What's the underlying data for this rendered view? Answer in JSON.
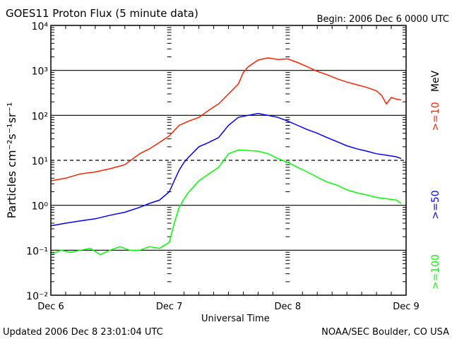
{
  "chart_data": {
    "type": "line",
    "title": "GOES11 Proton Flux (5 minute data)",
    "begin": "Begin: 2006 Dec 6 0000 UTC",
    "xlabel": "Universal Time",
    "ylabel": "Particles cm⁻²s⁻¹sr⁻¹",
    "x_ticks": [
      "Dec 6",
      "Dec 7",
      "Dec 8",
      "Dec 9"
    ],
    "x_range_hours": [
      0,
      72
    ],
    "y_scale": "log",
    "y_range": [
      0.01,
      10000
    ],
    "y_ticks": [
      "10⁻²",
      "10⁻¹",
      "10⁰",
      "10¹",
      "10²",
      "10³",
      "10⁴"
    ],
    "unit_label": "MeV",
    "series": [
      {
        "name": ">=10",
        "color": "#ff2000",
        "hours": [
          0,
          3,
          6,
          9,
          12,
          15,
          18,
          20,
          22,
          24,
          26,
          28,
          30,
          32,
          34,
          36,
          38,
          39,
          40,
          42,
          44,
          46,
          48,
          50,
          52,
          54,
          56,
          58,
          60,
          62,
          64,
          66,
          67,
          68,
          69,
          70,
          71
        ],
        "values": [
          3.5,
          4,
          5,
          5.5,
          6.5,
          8,
          14,
          18,
          25,
          35,
          60,
          75,
          90,
          130,
          180,
          300,
          500,
          900,
          1200,
          1700,
          1900,
          1750,
          1800,
          1500,
          1200,
          950,
          800,
          650,
          550,
          480,
          420,
          350,
          280,
          180,
          250,
          230,
          220
        ]
      },
      {
        "name": ">=50",
        "color": "#0000ff",
        "hours": [
          0,
          3,
          6,
          9,
          12,
          15,
          18,
          20,
          22,
          24,
          25,
          26,
          27,
          28,
          30,
          32,
          34,
          36,
          38,
          40,
          42,
          44,
          46,
          48,
          50,
          52,
          54,
          56,
          58,
          60,
          62,
          64,
          66,
          68,
          70,
          71
        ],
        "values": [
          0.35,
          0.4,
          0.45,
          0.5,
          0.6,
          0.7,
          0.9,
          1.1,
          1.3,
          2,
          3.5,
          6,
          9,
          12,
          20,
          25,
          32,
          60,
          90,
          100,
          110,
          100,
          90,
          75,
          60,
          48,
          40,
          32,
          26,
          21,
          18,
          16,
          14,
          13,
          12,
          11
        ]
      },
      {
        "name": ">=100",
        "color": "#00ff00",
        "hours": [
          0,
          2,
          4,
          6,
          8,
          10,
          12,
          14,
          16,
          18,
          20,
          22,
          24,
          25,
          26,
          27,
          28,
          30,
          32,
          34,
          36,
          38,
          40,
          42,
          44,
          46,
          48,
          50,
          52,
          54,
          56,
          58,
          60,
          62,
          64,
          66,
          68,
          70,
          71
        ],
        "values": [
          0.08,
          0.1,
          0.09,
          0.1,
          0.11,
          0.08,
          0.1,
          0.12,
          0.1,
          0.1,
          0.12,
          0.11,
          0.15,
          0.4,
          0.9,
          1.4,
          2,
          3.5,
          5,
          7,
          14,
          17,
          16.5,
          16,
          14,
          11,
          9,
          7,
          5.5,
          4.2,
          3.3,
          2.8,
          2.2,
          1.9,
          1.7,
          1.5,
          1.4,
          1.3,
          1.1
        ]
      }
    ]
  },
  "footer": {
    "updated": "Updated 2006 Dec  8 23:01:04 UTC",
    "credit": "NOAA/SEC Boulder, CO USA"
  }
}
